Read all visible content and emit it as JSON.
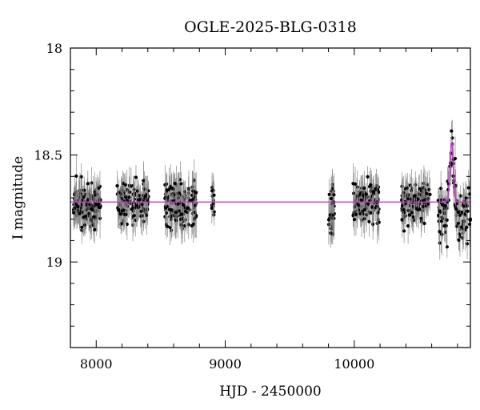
{
  "chart_data": {
    "type": "scatter",
    "title": "OGLE-2025-BLG-0318",
    "xlabel": "HJD - 2450000",
    "ylabel": "I magnitude",
    "xlim": [
      7800,
      10900
    ],
    "ylim": [
      18,
      19.4
    ],
    "y_inverted": true,
    "xticks": [
      8000,
      9000,
      10000
    ],
    "yticks": [
      18,
      18.5,
      19
    ],
    "xtick_labels": [
      "8000",
      "9000",
      "10000"
    ],
    "ytick_labels": [
      "18",
      "18.5",
      "19"
    ],
    "grid": false,
    "legend": "none",
    "colors": {
      "points": "#000000",
      "model": "#cc33cc",
      "errorbars": "#888888"
    },
    "model": {
      "baseline_mag": 18.72,
      "peak_hjd": 10755,
      "peak_mag": 18.44,
      "timescale_days": 12.5
    },
    "observing_seasons": [
      {
        "start": 7825,
        "end": 8035,
        "n": 150,
        "mean_mag": 18.73,
        "scatter": 0.045,
        "err": 0.07
      },
      {
        "start": 8160,
        "end": 8405,
        "n": 140,
        "mean_mag": 18.72,
        "scatter": 0.045,
        "err": 0.07
      },
      {
        "start": 8530,
        "end": 8780,
        "n": 150,
        "mean_mag": 18.73,
        "scatter": 0.05,
        "err": 0.075
      },
      {
        "start": 8895,
        "end": 8915,
        "n": 15,
        "mean_mag": 18.72,
        "scatter": 0.04,
        "err": 0.06
      },
      {
        "start": 9800,
        "end": 9845,
        "n": 35,
        "mean_mag": 18.75,
        "scatter": 0.06,
        "err": 0.08
      },
      {
        "start": 9985,
        "end": 10200,
        "n": 120,
        "mean_mag": 18.72,
        "scatter": 0.045,
        "err": 0.07
      },
      {
        "start": 10365,
        "end": 10590,
        "n": 120,
        "mean_mag": 18.73,
        "scatter": 0.045,
        "err": 0.07
      },
      {
        "start": 10650,
        "end": 10900,
        "n": 110,
        "mean_mag": 18.78,
        "scatter": 0.06,
        "err": 0.075
      }
    ]
  }
}
